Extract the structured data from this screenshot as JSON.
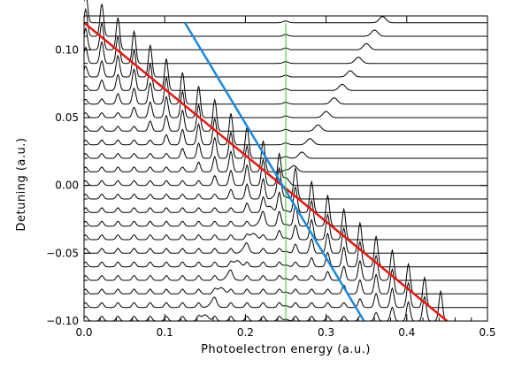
{
  "chart_data": {
    "type": "line",
    "title": "",
    "xlabel": "Photoelectron energy  (a.u.)",
    "ylabel": "Detuning  (a.u.)",
    "xlim": [
      0.0,
      0.5
    ],
    "ylim": [
      -0.1,
      0.125
    ],
    "xticks": [
      0.0,
      0.1,
      0.2,
      0.3,
      0.4,
      0.5
    ],
    "xtick_labels": [
      "0.0",
      "0.1",
      "0.2",
      "0.3",
      "0.4",
      "0.5"
    ],
    "yticks": [
      -0.1,
      -0.05,
      0.0,
      0.05,
      0.1
    ],
    "ytick_labels": [
      "−0.10",
      "−0.05",
      "0.00",
      "0.05",
      "0.10"
    ],
    "grid": false,
    "spectra_baselines": [
      0.12,
      0.11,
      0.1,
      0.09,
      0.08,
      0.07,
      0.06,
      0.05,
      0.04,
      0.03,
      0.02,
      0.01,
      0.0,
      -0.01,
      -0.02,
      -0.03,
      -0.04,
      -0.05,
      -0.06,
      -0.07,
      -0.08,
      -0.09,
      -0.1
    ],
    "peak_spacing": 0.02,
    "spectra_xrange": [
      0.0,
      0.5
    ],
    "reference_lines": [
      {
        "color": "#e8160f",
        "x": [
          0.0,
          0.45
        ],
        "y": [
          0.12,
          -0.1
        ]
      },
      {
        "color": "#1e88d8",
        "x": [
          0.125,
          0.347
        ],
        "y": [
          0.12,
          -0.1
        ]
      },
      {
        "color": "#3ac42e",
        "x": [
          0.25,
          0.25
        ],
        "y": [
          0.12,
          -0.1
        ]
      }
    ],
    "trace_color": "#000000"
  }
}
